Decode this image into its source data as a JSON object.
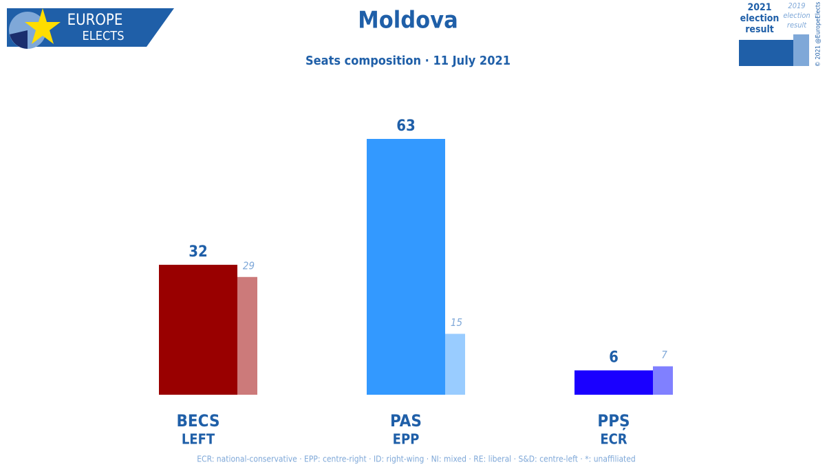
{
  "chart_data": {
    "type": "bar",
    "title": "Moldova",
    "subtitle": "Seats composition · 11 July 2021",
    "logo": [
      "EUROPE",
      "ELECTS"
    ],
    "copyright": "© 2021 @EuropeElects",
    "footnote": "ECR: national-conservative · EPP: centre-right · ID: right-wing · NI: mixed · RE: liberal · S&D: centre-left · *: unaffiliated",
    "categories": [
      "BECS",
      "PAS",
      "PPȘ"
    ],
    "groups": [
      "LEFT",
      "EPP",
      "ECR"
    ],
    "series": [
      {
        "name": [
          "2021",
          "election",
          "result"
        ],
        "color": "#1f5fa8",
        "colors": [
          "#990000",
          "#3399ff",
          "#1a00ff"
        ],
        "values": [
          32,
          63,
          6
        ]
      },
      {
        "name": [
          "2019",
          "election",
          "result"
        ],
        "color": "#7fa8d8",
        "colors": [
          "#cc7a7a",
          "#99ccff",
          "#8080ff"
        ],
        "values": [
          29,
          15,
          7
        ]
      }
    ]
  }
}
